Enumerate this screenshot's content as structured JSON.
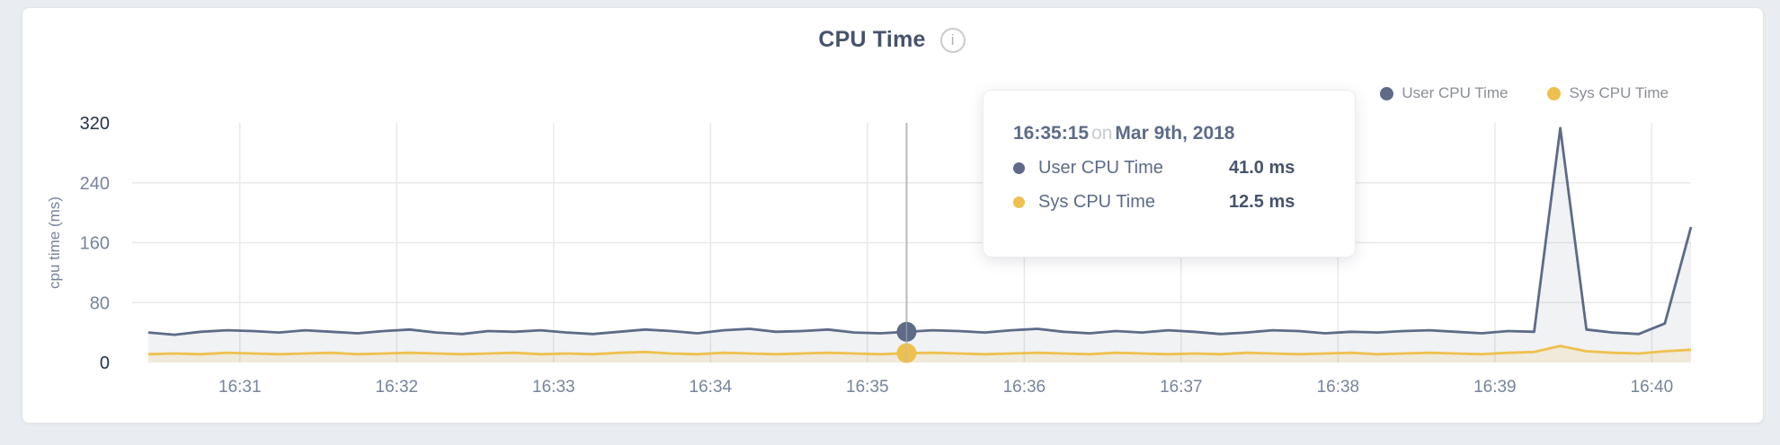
{
  "page": {
    "background": "#e9edf1"
  },
  "card": {
    "title": "CPU Time",
    "info_icon": "i"
  },
  "legend": [
    {
      "label": "User CPU Time",
      "color": "#5d6b88"
    },
    {
      "label": "Sys CPU Time",
      "color": "#eec14e"
    }
  ],
  "axes": {
    "y_label": "cpu time (ms)",
    "y_ticks": [
      0,
      80,
      160,
      240,
      320
    ],
    "x_ticks": [
      "16:31",
      "16:32",
      "16:33",
      "16:34",
      "16:35",
      "16:36",
      "16:37",
      "16:38",
      "16:39",
      "16:40"
    ]
  },
  "tooltip": {
    "time": "16:35:15",
    "conjunction": "on",
    "date": "Mar 9th, 2018",
    "rows": [
      {
        "label": "User CPU Time",
        "value": "41.0 ms",
        "color": "#5d6b88"
      },
      {
        "label": "Sys CPU Time",
        "value": "12.5 ms",
        "color": "#eec14e"
      }
    ]
  },
  "chart_data": {
    "type": "area",
    "title": "CPU Time",
    "ylabel": "cpu time (ms)",
    "ylim": [
      0,
      320
    ],
    "grid": true,
    "legend_position": "top-right",
    "x_start": "16:30:25",
    "x_end": "16:40:15",
    "interval_seconds": 10,
    "hover_index": 29,
    "hover_time": "16:35:15",
    "series": [
      {
        "name": "User CPU Time",
        "color": "#5d6b88",
        "fill": "rgba(93,107,136,0.09)",
        "values": [
          40,
          37,
          41,
          43,
          42,
          40,
          43,
          41,
          39,
          42,
          44,
          40,
          38,
          42,
          41,
          43,
          40,
          38,
          41,
          44,
          42,
          39,
          43,
          45,
          41,
          42,
          44,
          40,
          39,
          41,
          43,
          42,
          40,
          43,
          45,
          41,
          39,
          42,
          40,
          43,
          41,
          38,
          40,
          43,
          42,
          39,
          41,
          40,
          42,
          43,
          41,
          39,
          42,
          41,
          313,
          44,
          40,
          38,
          52,
          181
        ]
      },
      {
        "name": "Sys CPU Time",
        "color": "#eec14e",
        "fill": "rgba(238,193,78,0.16)",
        "values": [
          11,
          12,
          11,
          13,
          12,
          11,
          12,
          13,
          11,
          12,
          13,
          12,
          11,
          12,
          13,
          11,
          12,
          11,
          13,
          14,
          12,
          11,
          13,
          12,
          11,
          12,
          13,
          12,
          11,
          12.5,
          13,
          12,
          11,
          12,
          13,
          12,
          11,
          13,
          12,
          11,
          12,
          11,
          13,
          12,
          11,
          12,
          13,
          11,
          12,
          13,
          12,
          11,
          13,
          14,
          22,
          15,
          13,
          12,
          15,
          17
        ]
      }
    ]
  }
}
